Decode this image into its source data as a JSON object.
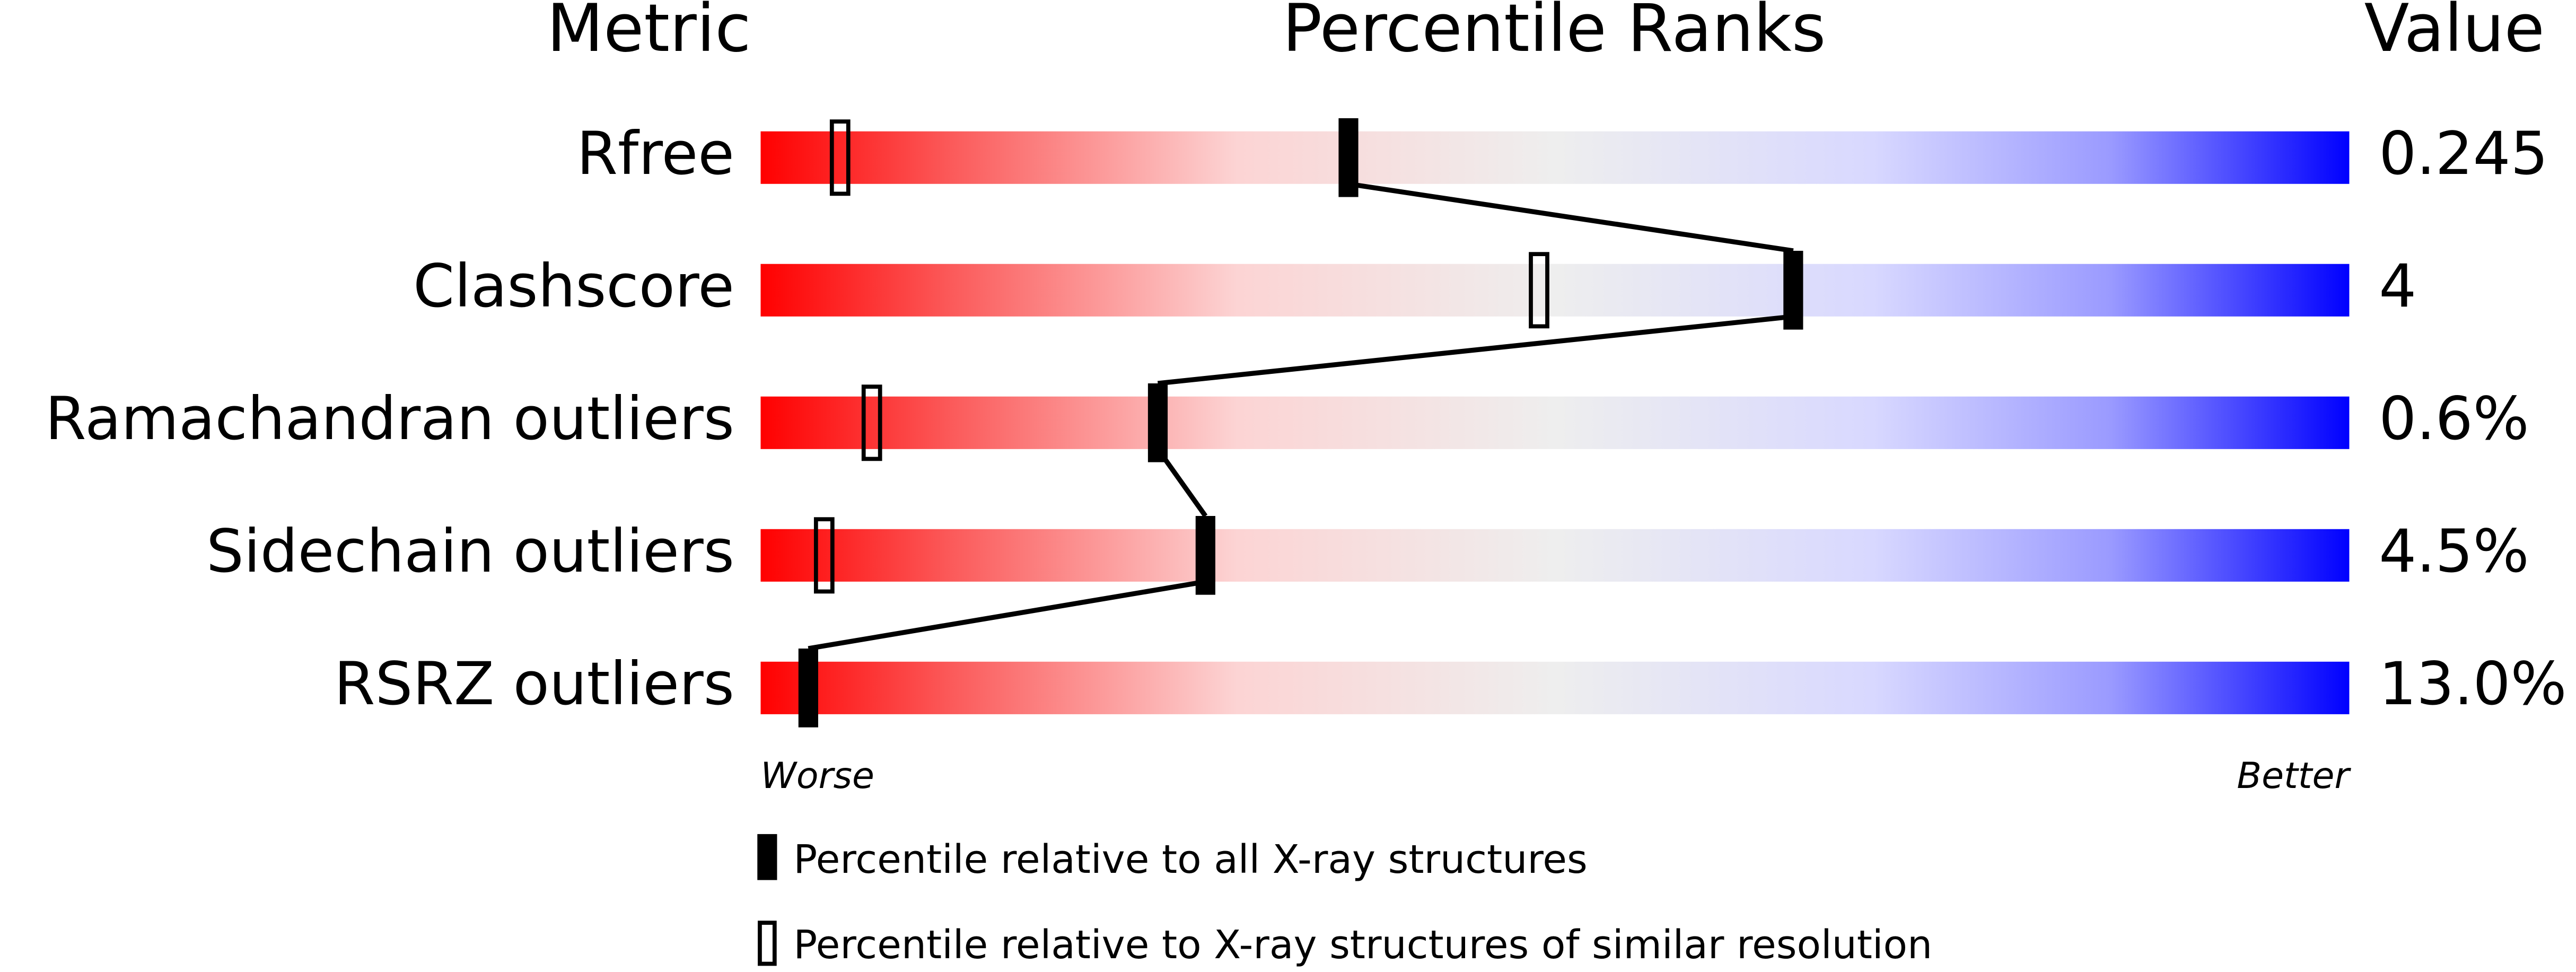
{
  "chart_data": {
    "type": "percentile_slider",
    "headers": [
      "Metric",
      "Percentile Ranks",
      "Value"
    ],
    "categories": [
      "Rfree",
      "Clashscore",
      "Ramachandran outliers",
      "Sidechain outliers",
      "RSRZ outliers"
    ],
    "metric_values": [
      "0.245",
      "4",
      "0.6%",
      "4.5%",
      "13.0%"
    ],
    "series": [
      {
        "name": "Percentile relative to all X-ray structures",
        "color": "#000000",
        "values": [
          37,
          65,
          25,
          28,
          3
        ]
      },
      {
        "name": "Percentile relative to X-ray structures of similar resolution",
        "color": "#000000",
        "values": [
          5,
          49,
          7,
          4,
          null
        ]
      }
    ],
    "xlim": [
      0,
      100
    ],
    "axis_labels": [
      "Worse",
      "Better"
    ]
  }
}
